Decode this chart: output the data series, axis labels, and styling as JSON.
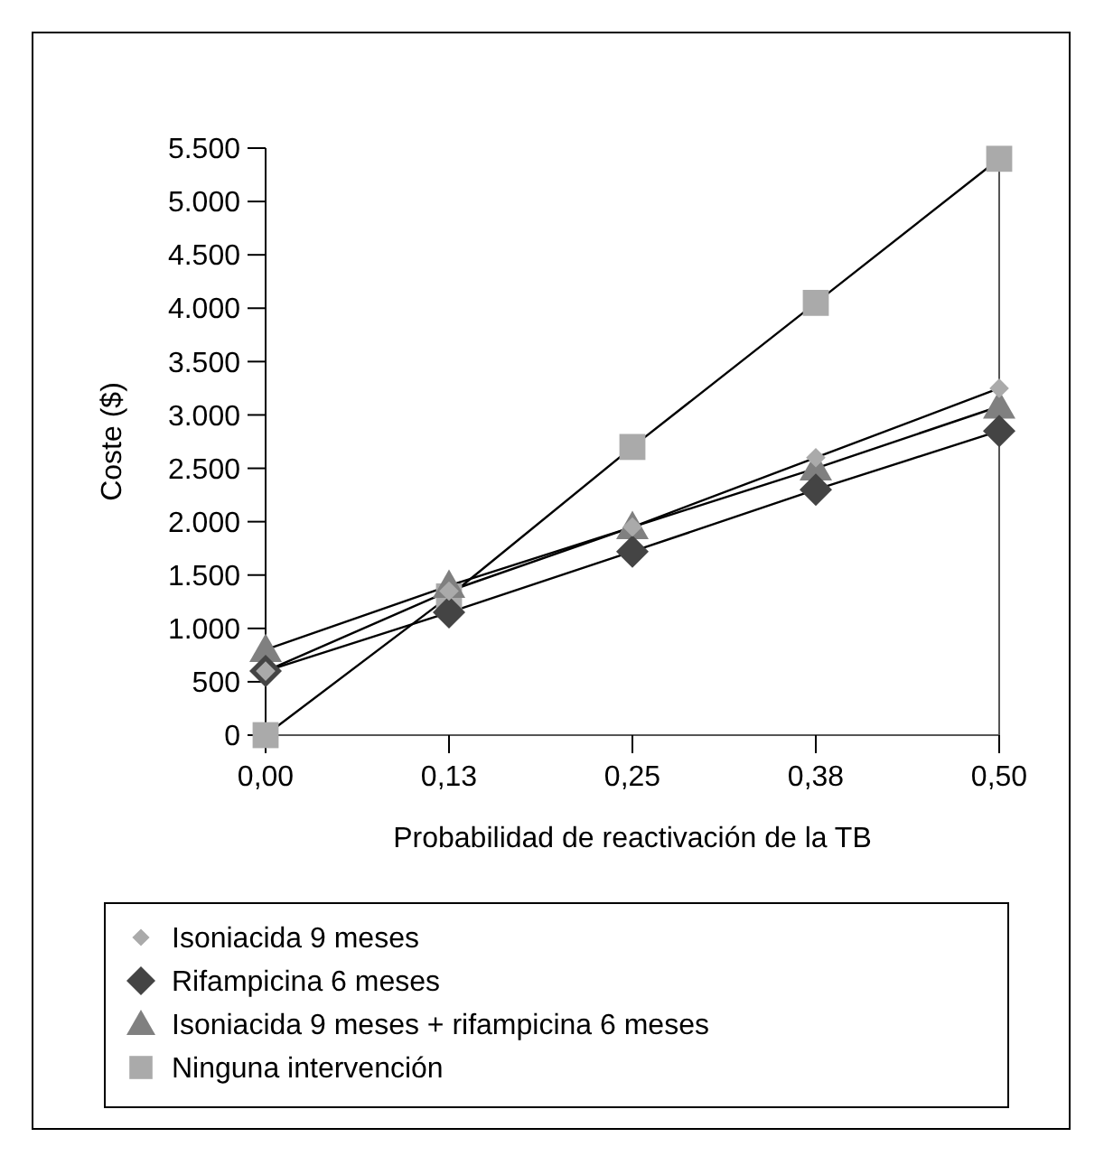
{
  "chart_data": {
    "type": "line",
    "xlabel": "Probabilidad de reactivación de la TB",
    "ylabel": "Coste ($)",
    "categories": [
      "0,00",
      "0,13",
      "0,25",
      "0,38",
      "0,50"
    ],
    "ylim": [
      0,
      5500
    ],
    "yticks": [
      0,
      500,
      {
        "value": 1000,
        "label": "1.000"
      },
      {
        "value": 1500,
        "label": "1.500"
      },
      {
        "value": 2000,
        "label": "2.000"
      },
      {
        "value": 2500,
        "label": "2.500"
      },
      {
        "value": 3000,
        "label": "3.000"
      },
      {
        "value": 3500,
        "label": "3.500"
      },
      {
        "value": 4000,
        "label": "4.000"
      },
      {
        "value": 4500,
        "label": "4.500"
      },
      {
        "value": 5000,
        "label": "5.000"
      },
      {
        "value": 5500,
        "label": "5.500"
      }
    ],
    "legend": "bottom",
    "grid": false,
    "series": [
      {
        "name": "Isoniacida 9 meses",
        "color": "#aaaaaa",
        "marker": "diamond",
        "values": [
          600,
          1350,
          1950,
          2600,
          3250
        ]
      },
      {
        "name": "Rifampicina 6 meses",
        "color": "#444444",
        "marker": "diamond",
        "values": [
          600,
          1150,
          1720,
          2300,
          2850
        ]
      },
      {
        "name": "Isoniacida 9 meses + rifampicina 6 meses",
        "color": "#808080",
        "marker": "triangle",
        "values": [
          800,
          1400,
          1950,
          2500,
          3080
        ]
      },
      {
        "name": "Ninguna intervención",
        "color": "#aaaaaa",
        "marker": "square",
        "values": [
          0,
          1300,
          2700,
          4050,
          5400
        ]
      }
    ]
  }
}
